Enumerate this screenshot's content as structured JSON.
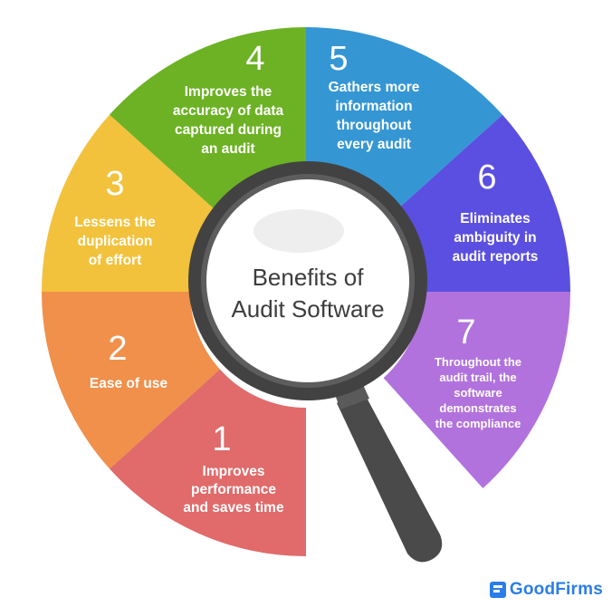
{
  "center": {
    "title_line1": "Benefits of",
    "title_line2": "Audit Software"
  },
  "segments": [
    {
      "number": "1",
      "lines": [
        "Improves",
        "performance",
        "and saves time"
      ],
      "color": "#e16a6a"
    },
    {
      "number": "2",
      "lines": [
        "Ease of use"
      ],
      "color": "#f0904a"
    },
    {
      "number": "3",
      "lines": [
        "Lessens the",
        "duplication",
        "of effort"
      ],
      "color": "#f2c23c"
    },
    {
      "number": "4",
      "lines": [
        "Improves the",
        "accuracy of data",
        "captured during",
        "an audit"
      ],
      "color": "#6cb224"
    },
    {
      "number": "5",
      "lines": [
        "Gathers more",
        "information",
        "throughout",
        "every audit"
      ],
      "color": "#3596d4"
    },
    {
      "number": "6",
      "lines": [
        "Eliminates",
        "ambiguity in",
        "audit reports"
      ],
      "color": "#5a4fe0"
    },
    {
      "number": "7",
      "lines": [
        "Throughout the",
        "audit trail, the",
        "software",
        "demonstrates",
        "the compliance"
      ],
      "color": "#b172dd"
    }
  ],
  "brand": {
    "name": "GoodFirms",
    "icon": "goodfirms-logo-icon",
    "color": "#2b7de9"
  },
  "icons": {
    "magnifier": "magnifying-glass-icon"
  }
}
